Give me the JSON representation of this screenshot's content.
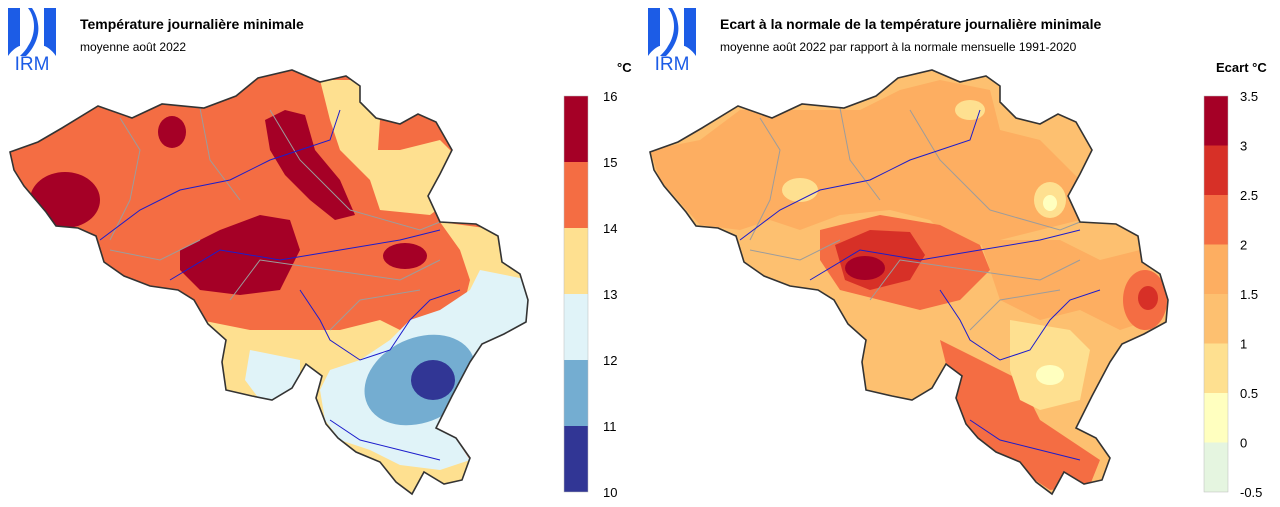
{
  "logo_text": "IRM",
  "colors": {
    "brand_blue": "#1C5CE6",
    "border": "#333333",
    "province_lines": "#9C9C9C",
    "rivers": "#1C1CCC"
  },
  "left_map": {
    "title": "Température journalière minimale",
    "subtitle": "moyenne août 2022",
    "legend_unit": "°C",
    "legend": {
      "ticks": [
        "16",
        "15",
        "14",
        "13",
        "12",
        "11",
        "10"
      ],
      "bins": [
        {
          "from": 15,
          "to": 16,
          "color": "#A50026"
        },
        {
          "from": 14,
          "to": 15,
          "color": "#F46D43"
        },
        {
          "from": 13,
          "to": 14,
          "color": "#FEE090"
        },
        {
          "from": 12,
          "to": 13,
          "color": "#E0F3F8"
        },
        {
          "from": 11,
          "to": 12,
          "color": "#74ADD1"
        },
        {
          "from": 10,
          "to": 11,
          "color": "#313695"
        }
      ]
    }
  },
  "right_map": {
    "title": "Ecart à la normale de la température journalière minimale",
    "subtitle": "moyenne août 2022 par rapport à la normale mensuelle 1991-2020",
    "legend_unit": "Ecart °C",
    "legend": {
      "ticks": [
        "3.5",
        "3",
        "2.5",
        "2",
        "1.5",
        "1",
        "0.5",
        "0",
        "-0.5"
      ],
      "bins": [
        {
          "from": 3.0,
          "to": 3.5,
          "color": "#A50026"
        },
        {
          "from": 2.5,
          "to": 3.0,
          "color": "#D73027"
        },
        {
          "from": 2.0,
          "to": 2.5,
          "color": "#F46D43"
        },
        {
          "from": 1.5,
          "to": 2.0,
          "color": "#FDAE61"
        },
        {
          "from": 1.0,
          "to": 1.5,
          "color": "#FDC070"
        },
        {
          "from": 0.5,
          "to": 1.0,
          "color": "#FEE090"
        },
        {
          "from": 0.0,
          "to": 0.5,
          "color": "#FFFFBF"
        },
        {
          "from": -0.5,
          "to": 0.0,
          "color": "#E5F5E0"
        }
      ]
    }
  }
}
